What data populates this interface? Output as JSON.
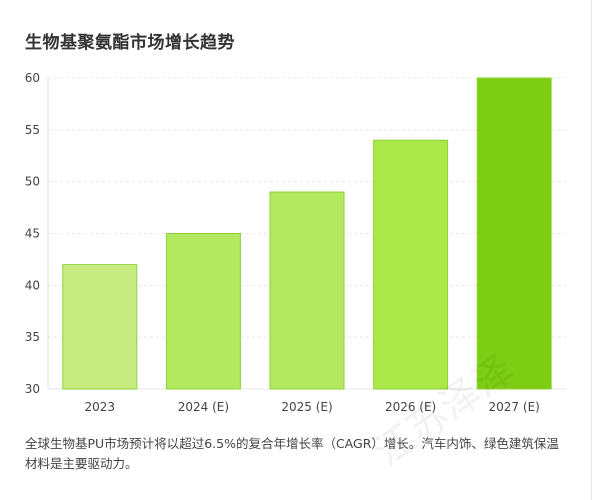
{
  "colors": {
    "bar_light": "#c7ec82",
    "bar_mid": "#b2e95e",
    "bar_bright": "#aae84a",
    "bar_dark": "#7ccd14",
    "bar_stroke": "#8fd23a",
    "grid": "#e8e8e8",
    "axis_text": "#444444"
  },
  "chart_data": {
    "type": "bar",
    "title": "生物基聚氨酯市场增长趋势",
    "categories": [
      "2023",
      "2024 (E)",
      "2025 (E)",
      "2026 (E)",
      "2027 (E)"
    ],
    "values": [
      42,
      45,
      49,
      54,
      60
    ],
    "ylim": [
      30,
      60
    ],
    "yticks": [
      30,
      35,
      40,
      45,
      50,
      55,
      60
    ],
    "xlabel": "",
    "ylabel": "",
    "grid": true,
    "legend": "none"
  },
  "caption": "全球生物基PU市场预计将以超过6.5%的复合年增长率（CAGR）增长。汽车内饰、绿色建筑保温材料是主要驱动力。",
  "watermark": "江苏泽泽"
}
